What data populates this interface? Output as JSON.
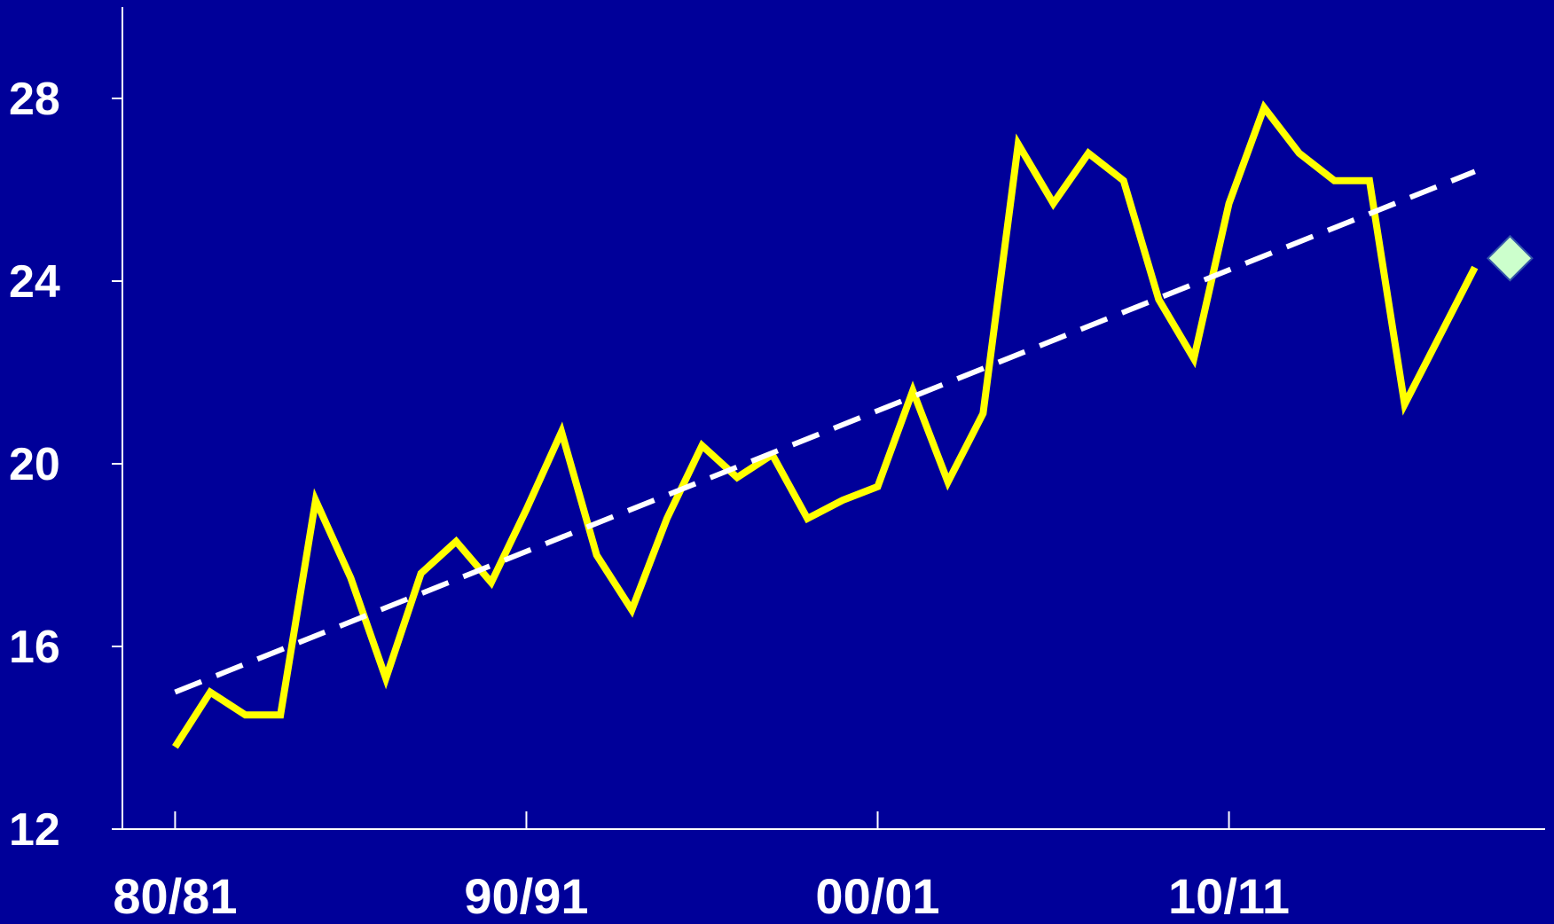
{
  "chart_data": {
    "type": "line",
    "title": "",
    "xlabel": "",
    "ylabel": "",
    "ylim": [
      12,
      30
    ],
    "yticks": [
      12,
      16,
      20,
      24,
      28
    ],
    "x_tick_labels": [
      "80/81",
      "90/91",
      "00/01",
      "10/11"
    ],
    "x_tick_seasons": [
      1980,
      1990,
      2000,
      2010
    ],
    "x": [
      1980,
      1981,
      1982,
      1983,
      1984,
      1985,
      1986,
      1987,
      1988,
      1989,
      1990,
      1991,
      1992,
      1993,
      1994,
      1995,
      1996,
      1997,
      1998,
      1999,
      2000,
      2001,
      2002,
      2003,
      2004,
      2005,
      2006,
      2007,
      2008,
      2009,
      2010,
      2011,
      2012,
      2013,
      2014,
      2015,
      2016,
      2017
    ],
    "series": [
      {
        "style": "solid",
        "color": "#ffff00",
        "values": [
          13.8,
          15.0,
          14.5,
          14.5,
          19.2,
          17.5,
          15.3,
          17.6,
          18.3,
          17.4,
          19.0,
          20.7,
          18.0,
          16.8,
          18.8,
          20.4,
          19.7,
          20.2,
          18.8,
          19.2,
          19.5,
          21.6,
          19.6,
          21.1,
          27.0,
          25.7,
          26.8,
          26.2,
          23.6,
          22.3,
          25.7,
          27.8,
          26.8,
          26.2,
          26.2,
          21.3,
          22.8,
          24.3
        ]
      },
      {
        "style": "dashed",
        "color": "#ffffff",
        "x": [
          1980,
          2017
        ],
        "values": [
          15.0,
          26.4
        ]
      }
    ],
    "highlight_point": {
      "x": 2018,
      "value": 24.5,
      "marker": "diamond",
      "color": "#ccffcc"
    },
    "grid": false,
    "legend": "none"
  }
}
